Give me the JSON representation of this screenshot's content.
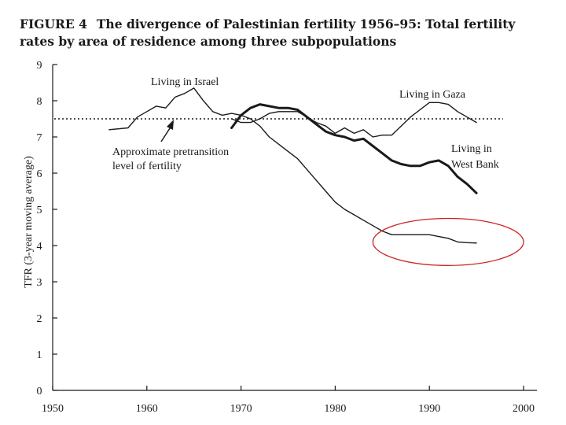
{
  "chart_data": {
    "type": "line",
    "figure_label": "FIGURE 4",
    "title_line1": "The divergence of Palestinian fertility 1956–95: Total fertility",
    "title_line2": "rates by area of residence among three subpopulations",
    "ylabel": "TFR (3-year moving average)",
    "xlabel": "",
    "xlim": [
      1950,
      2000
    ],
    "ylim": [
      0,
      9
    ],
    "x_ticks": [
      "1950",
      "1960",
      "1970",
      "1980",
      "1990",
      "2000"
    ],
    "y_ticks": [
      "0",
      "1",
      "2",
      "3",
      "4",
      "5",
      "6",
      "7",
      "8",
      "9"
    ],
    "reference_line": {
      "value": 7.5,
      "label_line1": "Approximate pretransition",
      "label_line2": "level of fertility"
    },
    "series": [
      {
        "name": "Living in Israel",
        "label": "Living in Israel",
        "x": [
          1956,
          1958,
          1959,
          1960,
          1961,
          1962,
          1963,
          1964,
          1965,
          1966,
          1967,
          1968,
          1969,
          1970,
          1971,
          1972,
          1973,
          1974,
          1975,
          1976,
          1977,
          1978,
          1979,
          1980,
          1981,
          1982,
          1983,
          1984,
          1985,
          1986,
          1987,
          1988,
          1989,
          1990,
          1991,
          1992,
          1993,
          1994,
          1995
        ],
        "y": [
          7.2,
          7.25,
          7.55,
          7.7,
          7.85,
          7.8,
          8.1,
          8.2,
          8.35,
          8.0,
          7.7,
          7.6,
          7.65,
          7.6,
          7.5,
          7.3,
          7.0,
          6.8,
          6.6,
          6.4,
          6.1,
          5.8,
          5.5,
          5.2,
          5.0,
          4.85,
          4.7,
          4.55,
          4.4,
          4.3,
          4.3,
          4.3,
          4.3,
          4.3,
          4.25,
          4.2,
          4.1,
          4.08,
          4.07
        ]
      },
      {
        "name": "Living in Gaza",
        "label": "Living in Gaza",
        "x": [
          1969,
          1970,
          1971,
          1972,
          1973,
          1974,
          1975,
          1976,
          1977,
          1978,
          1979,
          1980,
          1981,
          1982,
          1983,
          1984,
          1985,
          1986,
          1987,
          1988,
          1989,
          1990,
          1991,
          1992,
          1993,
          1994,
          1995
        ],
        "y": [
          7.5,
          7.4,
          7.4,
          7.5,
          7.65,
          7.7,
          7.7,
          7.7,
          7.55,
          7.4,
          7.3,
          7.1,
          7.25,
          7.1,
          7.2,
          7.0,
          7.05,
          7.05,
          7.3,
          7.55,
          7.75,
          7.95,
          7.95,
          7.9,
          7.7,
          7.55,
          7.4
        ]
      },
      {
        "name": "Living in West Bank",
        "label_line1": "Living in",
        "label_line2": "West Bank",
        "x": [
          1969,
          1970,
          1971,
          1972,
          1973,
          1974,
          1975,
          1976,
          1977,
          1978,
          1979,
          1980,
          1981,
          1982,
          1983,
          1984,
          1985,
          1986,
          1987,
          1988,
          1989,
          1990,
          1991,
          1992,
          1993,
          1994,
          1995
        ],
        "y": [
          7.25,
          7.6,
          7.8,
          7.9,
          7.85,
          7.8,
          7.8,
          7.75,
          7.55,
          7.35,
          7.15,
          7.05,
          7.0,
          6.9,
          6.95,
          6.75,
          6.55,
          6.35,
          6.25,
          6.2,
          6.2,
          6.3,
          6.35,
          6.2,
          5.9,
          5.7,
          5.45
        ]
      }
    ],
    "highlight": {
      "shape": "ellipse",
      "color": "#cc2222",
      "x_range": [
        1984,
        2000
      ],
      "y_range": [
        3.45,
        4.75
      ]
    },
    "arrow_color": "#1a1a1a",
    "line_color": "#1a1a1a"
  }
}
